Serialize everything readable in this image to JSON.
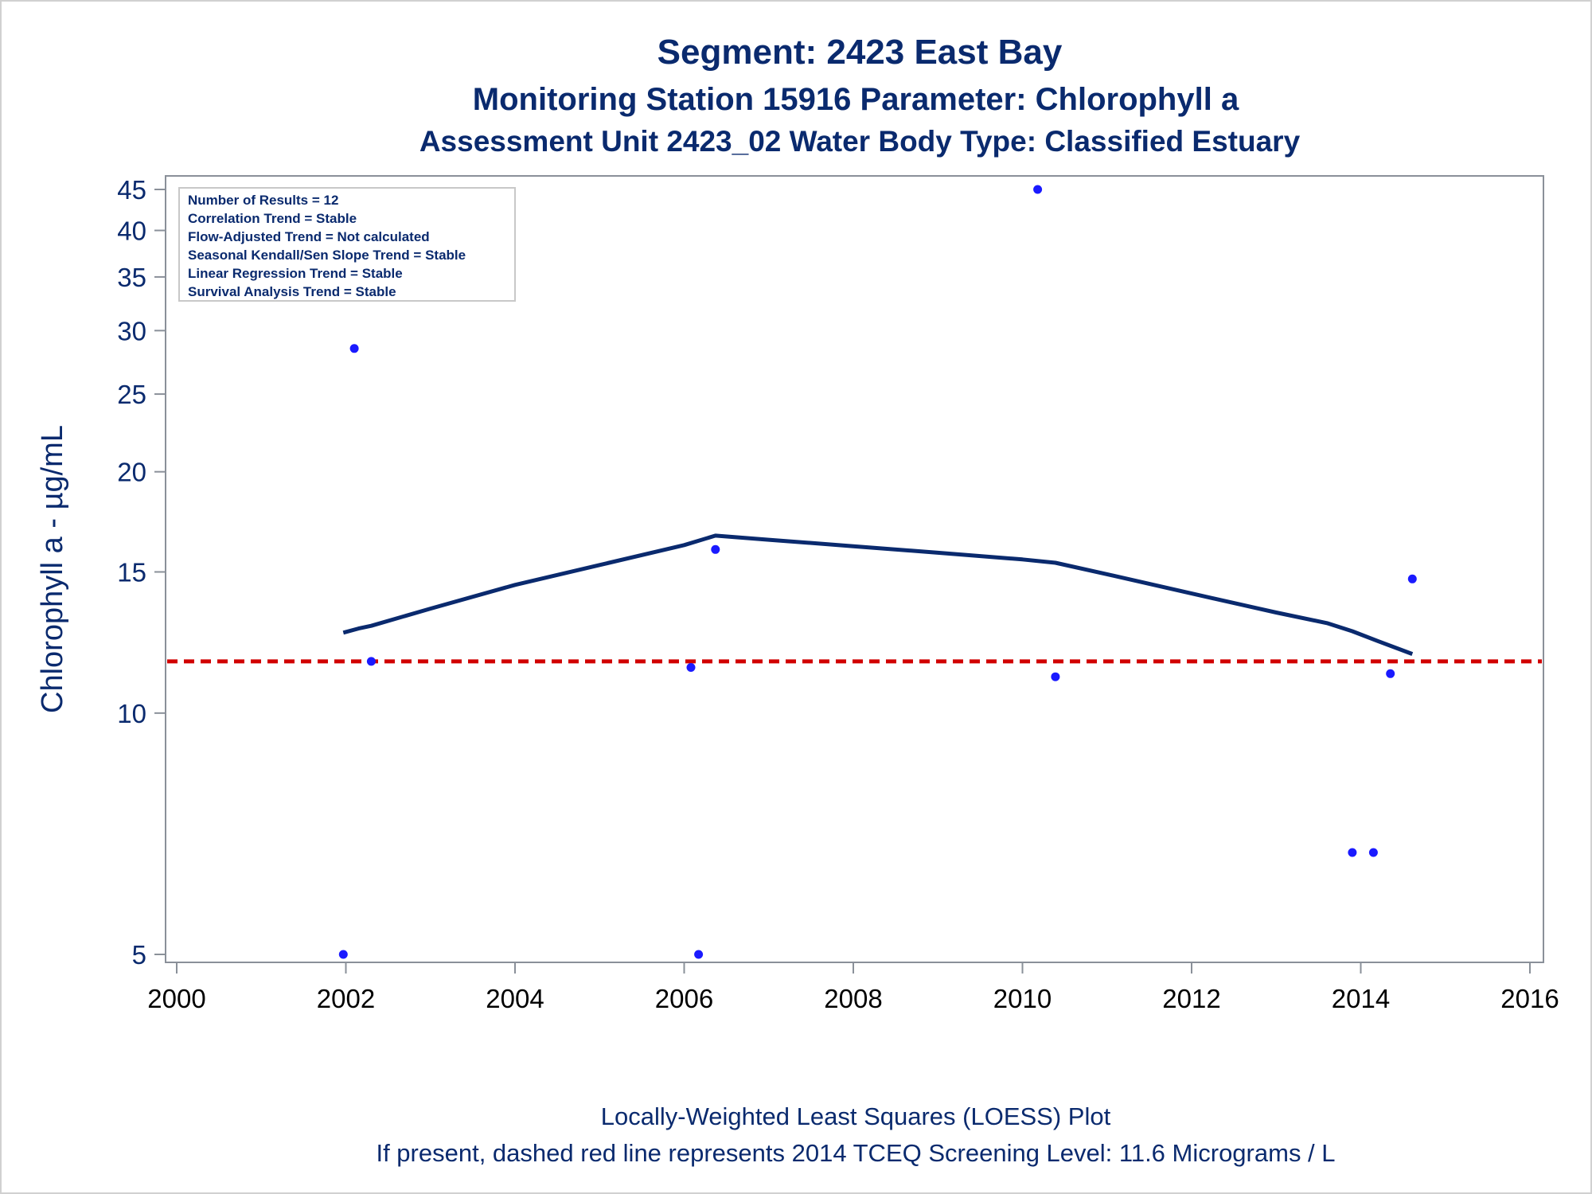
{
  "chart_data": {
    "type": "scatter",
    "title": "Segment: 2423  East Bay",
    "subtitle": "Monitoring Station 15916 Parameter: Chlorophyll a",
    "subtitle2": "Assessment Unit 2423_02   Water Body Type: Classified Estuary",
    "ylabel": "Chlorophyll a -  µg/mL",
    "xlabel": "",
    "footnote1": "Locally-Weighted Least Squares (LOESS) Plot",
    "footnote2": "If present, dashed red line represents 2014 TCEQ Screening Level: 11.6 Micrograms / L",
    "x_scale": "linear",
    "y_scale": "log",
    "xlim": [
      2000,
      2016
    ],
    "ylim": [
      4.85,
      46
    ],
    "x_ticks": [
      2000,
      2002,
      2004,
      2006,
      2008,
      2010,
      2012,
      2014,
      2016
    ],
    "y_ticks": [
      5,
      10,
      15,
      20,
      25,
      30,
      35,
      40,
      45
    ],
    "grid": false,
    "stats_box": [
      "Number of Results = 12",
      "Correlation Trend = Stable",
      "Flow-Adjusted Trend = Not calculated",
      "Seasonal Kendall/Sen Slope Trend = Stable",
      "Linear Regression Trend = Stable",
      "Survival Analysis Trend = Stable"
    ],
    "stats_box_position": "top-left",
    "points": {
      "x": [
        2001.97,
        2002.1,
        2002.3,
        2006.08,
        2006.17,
        2006.37,
        2010.18,
        2010.39,
        2013.9,
        2014.15,
        2014.35,
        2014.61
      ],
      "y": [
        5.0,
        28.5,
        11.6,
        11.4,
        5.0,
        16.0,
        45.0,
        11.1,
        6.7,
        6.7,
        11.2,
        14.7
      ]
    },
    "loess": {
      "x": [
        2001.97,
        2002.15,
        2002.3,
        2003,
        2004,
        2005,
        2006,
        2006.37,
        2007,
        2008,
        2009,
        2010,
        2010.39,
        2011,
        2012,
        2013,
        2013.6,
        2013.9,
        2014.2,
        2014.61
      ],
      "y": [
        12.6,
        12.75,
        12.85,
        13.5,
        14.45,
        15.3,
        16.2,
        16.65,
        16.45,
        16.15,
        15.85,
        15.55,
        15.4,
        14.9,
        14.1,
        13.35,
        12.95,
        12.65,
        12.3,
        11.85
      ]
    },
    "reference_line": {
      "y": 11.6,
      "style": "dashed"
    },
    "colors": {
      "points": "#1a1aff",
      "loess": "#0a2a6e",
      "reference": "#d10000",
      "text": "#0a2a6e",
      "frame": "#8a9099"
    }
  }
}
